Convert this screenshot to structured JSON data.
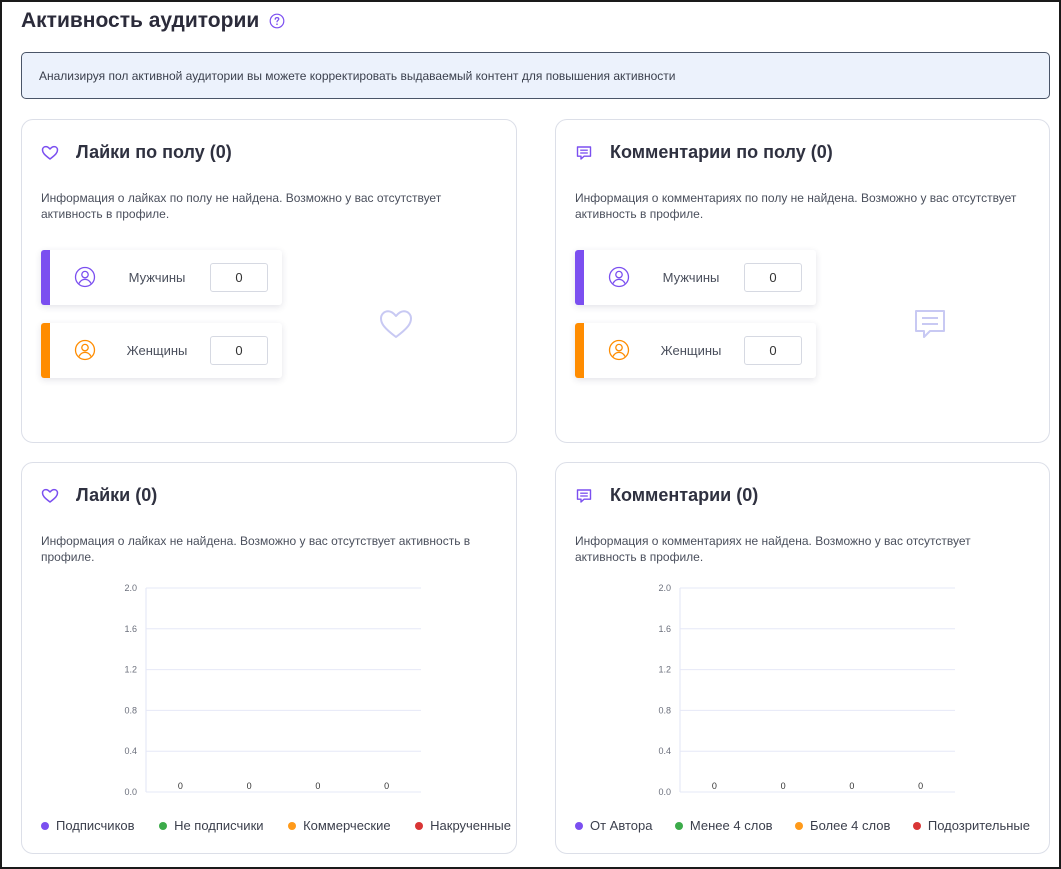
{
  "page": {
    "title": "Активность аудитории",
    "help_icon": "question-circle-icon",
    "banner": "Анализируя пол активной аудитории вы можете корректировать выдаваемый контент для повышения активности"
  },
  "colors": {
    "accent": "#7b4ff0",
    "male": "#7b4ff0",
    "female": "#ff8c00",
    "green": "#3cab4a",
    "red": "#d93535",
    "orange": "#ff9a1a"
  },
  "likes_gender": {
    "icon": "heart-icon",
    "title": "Лайки по полу (0)",
    "description": "Информация о лайках по полу не найдена. Возможно у вас отсутствует активность в профиле.",
    "rows": [
      {
        "label": "Мужчины",
        "value": "0",
        "icon": "user-icon"
      },
      {
        "label": "Женщины",
        "value": "0",
        "icon": "user-icon"
      }
    ]
  },
  "comments_gender": {
    "icon": "comment-icon",
    "title": "Комментарии по полу (0)",
    "description": "Информация о комментариях по полу не найдена. Возможно у вас отсутствует активность в профиле.",
    "rows": [
      {
        "label": "Мужчины",
        "value": "0",
        "icon": "user-icon"
      },
      {
        "label": "Женщины",
        "value": "0",
        "icon": "user-icon"
      }
    ]
  },
  "likes": {
    "icon": "heart-icon",
    "title": "Лайки (0)",
    "description": "Информация о лайках не найдена. Возможно у вас отсутствует активность в профиле.",
    "legend": [
      "Подписчиков",
      "Не подписчики",
      "Коммерческие",
      "Накрученные"
    ]
  },
  "comments": {
    "icon": "comment-icon",
    "title": "Комментарии (0)",
    "description": "Информация о комментариях не найдена. Возможно у вас отсутствует активность в профиле.",
    "legend": [
      "От Автора",
      "Менее 4 слов",
      "Более 4 слов",
      "Подозрительные"
    ]
  },
  "chart_data": [
    {
      "type": "bar",
      "categories": [
        "Подписчиков",
        "Не подписчики",
        "Коммерческие",
        "Накрученные"
      ],
      "values": [
        0,
        0,
        0,
        0
      ],
      "yticks": [
        "0.0",
        "0.4",
        "0.8",
        "1.2",
        "1.6",
        "2.0"
      ],
      "ylim": [
        0,
        2
      ],
      "grid": true,
      "legend_position": "bottom"
    },
    {
      "type": "bar",
      "categories": [
        "От Автора",
        "Менее 4 слов",
        "Более 4 слов",
        "Подозрительные"
      ],
      "values": [
        0,
        0,
        0,
        0
      ],
      "yticks": [
        "0.0",
        "0.4",
        "0.8",
        "1.2",
        "1.6",
        "2.0"
      ],
      "ylim": [
        0,
        2
      ],
      "grid": true,
      "legend_position": "bottom"
    }
  ]
}
